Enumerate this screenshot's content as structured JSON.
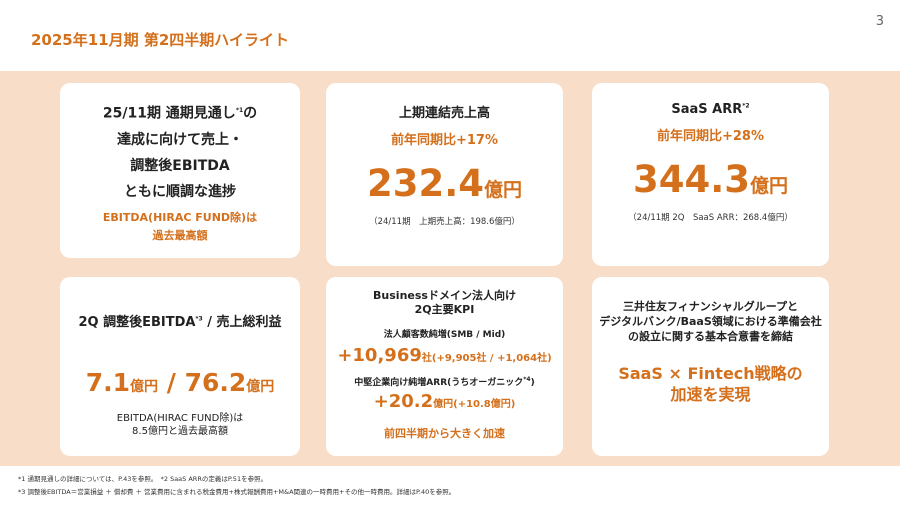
{
  "page_number": "3",
  "title": "2025年11月期 第2四半期ハイライト",
  "card1": {
    "line1_pre": "25/11期 通期見通し",
    "line1_sup": "*1",
    "line1_post": "の",
    "line2": "達成に向けて売上・",
    "line3": "調整後EBITDA",
    "line4": "ともに順調な進捗",
    "sub1": "EBITDA(HIRAC FUND除)は",
    "sub2": "過去最高額"
  },
  "card2": {
    "title": "上期連結売上高",
    "yoy": "前年同期比+17%",
    "value": "232.4",
    "unit": "億円",
    "note": "（24/11期　上期売上高：198.6億円）"
  },
  "card3": {
    "title": "SaaS ARR",
    "title_sup": "*2",
    "yoy": "前年同期比+28%",
    "value": "344.3",
    "unit": "億円",
    "note": "（24/11期 2Q　SaaS ARR：268.4億円）"
  },
  "card4": {
    "title_pre": "2Q 調整後EBITDA",
    "title_sup": "*3",
    "title_post": " / 売上総利益",
    "value1": "7.1",
    "unit1": "億円",
    "sep": " / ",
    "value2": "76.2",
    "unit2": "億円",
    "note1": "EBITDA(HIRAC FUND除)は",
    "note2": "8.5億円と過去最高額"
  },
  "card5": {
    "title1": "Businessドメイン法人向け",
    "title2": "2Q主要KPI",
    "label1": "法人顧客数純増(SMB / Mid)",
    "value1": "+10,969",
    "suffix1": "社(+9,905社 / +1,064社)",
    "label2_pre": "中堅企業向け純増ARR(うちオーガニック",
    "label2_sup": "*4",
    "label2_post": ")",
    "value2": "+20.2",
    "suffix2": "億円(+10.8億円)",
    "footer": "前四半期から大きく加速"
  },
  "card6": {
    "line1": "三井住友フィナンシャルグループと",
    "line2": "デジタルバンク/BaaS領域における準備会社",
    "line3": "の設立に関する基本合意書を締結",
    "big1": "SaaS × Fintech戦略の",
    "big2": "加速を実現"
  },
  "footnotes": {
    "line1": "*1 通期見通しの詳細については、P.43を参照。　*2 SaaS ARRの定義はP.51を参照。",
    "line2": "*3 調整後EBITDA＝営業損益 ＋ 償却費 ＋ 営業費用に含まれる税金費用+株式報酬費用+M&A関連の一時費用+その他一時費用。詳細はP.40を参照。"
  },
  "colors": {
    "accent": "#d4701c",
    "panel": "#f8dec8"
  }
}
